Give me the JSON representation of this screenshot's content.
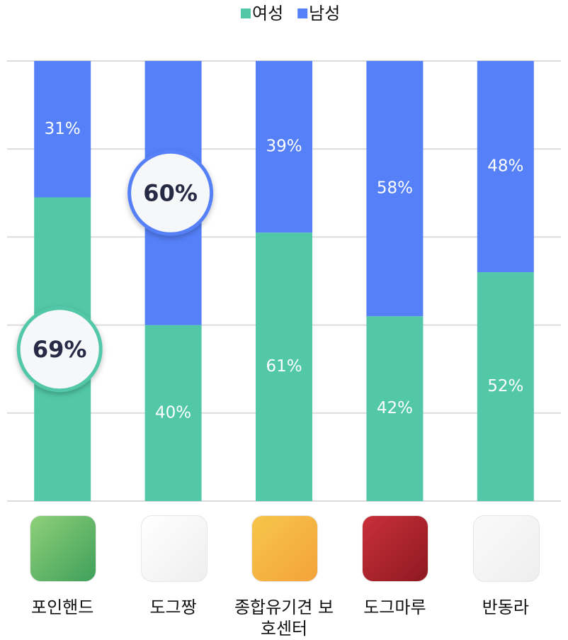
{
  "chart_data": {
    "type": "stacked_bar",
    "categories": [
      "포인핸드",
      "도그짱",
      "종합유기견 보호센터",
      "도그마루",
      "반동라"
    ],
    "series": [
      {
        "name": "여성",
        "color": "#52c8a8",
        "values": [
          69,
          40,
          61,
          42,
          52
        ],
        "value_labels": [
          "69%",
          "40%",
          "61%",
          "42%",
          "52%"
        ]
      },
      {
        "name": "남성",
        "color": "#5580f8",
        "values": [
          31,
          60,
          39,
          58,
          48
        ],
        "value_labels": [
          "31%",
          "60%",
          "39%",
          "58%",
          "48%"
        ]
      }
    ],
    "ylim": [
      0,
      100
    ],
    "yticks": [
      0,
      20,
      40,
      60,
      80,
      100
    ],
    "grid": true
  }
}
